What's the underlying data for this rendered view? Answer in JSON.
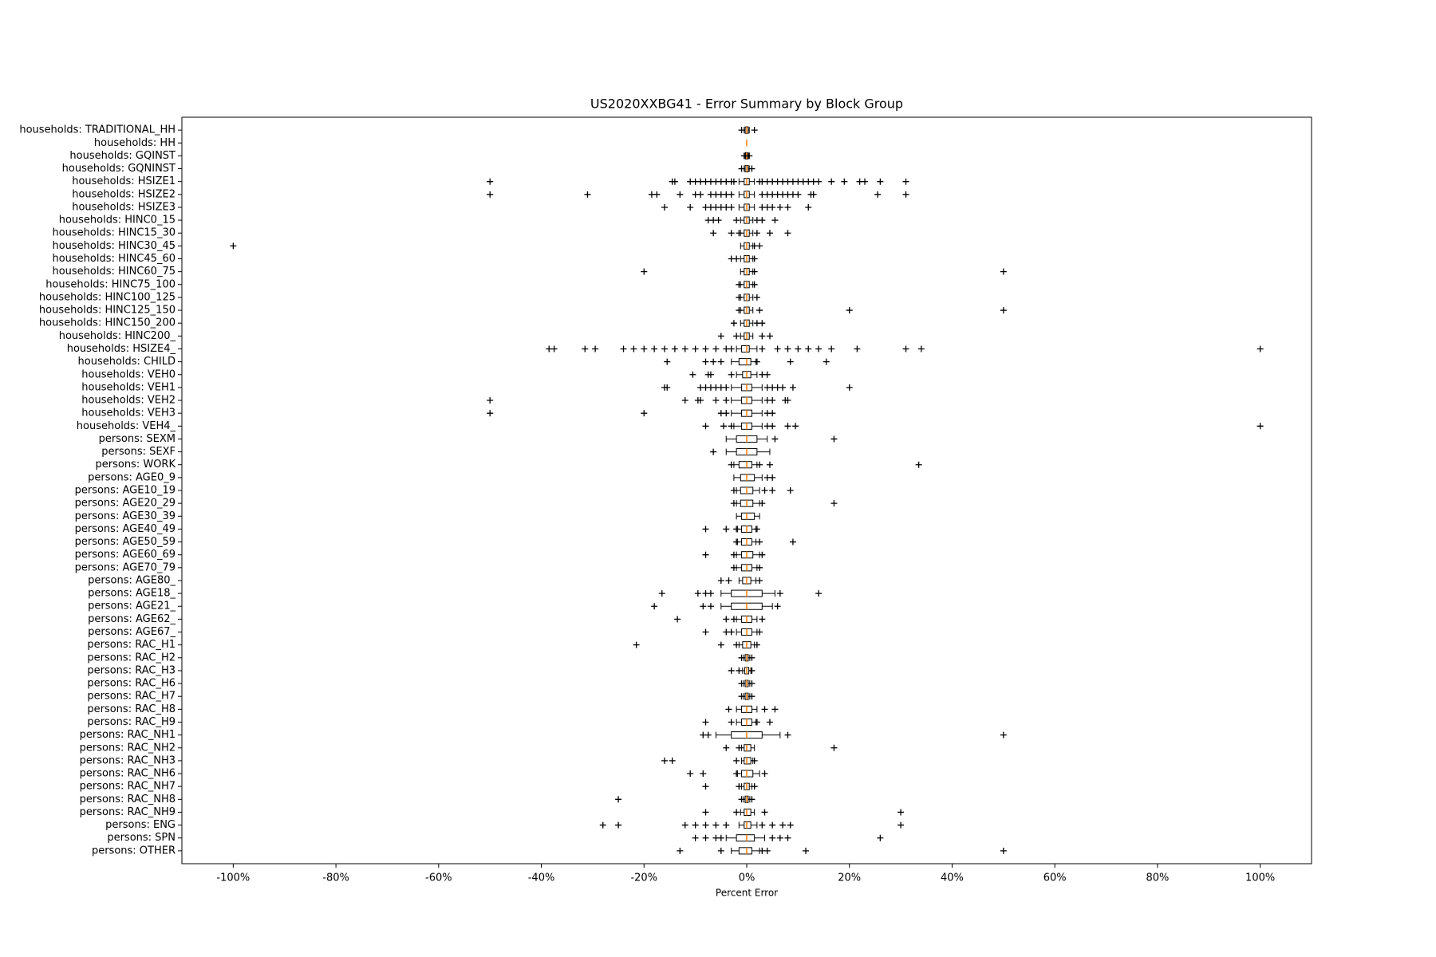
{
  "chart_data": {
    "type": "boxplot",
    "orientation": "horizontal",
    "title": "US2020XXBG41 - Error Summary by Block Group",
    "xlabel": "Percent Error",
    "xlim": [
      -110,
      110
    ],
    "xticks": [
      {
        "value": -100,
        "label": "-100%"
      },
      {
        "value": -80,
        "label": "-80%"
      },
      {
        "value": -60,
        "label": "-60%"
      },
      {
        "value": -40,
        "label": "-40%"
      },
      {
        "value": -20,
        "label": "-20%"
      },
      {
        "value": 0,
        "label": "0%"
      },
      {
        "value": 20,
        "label": "20%"
      },
      {
        "value": 40,
        "label": "40%"
      },
      {
        "value": 60,
        "label": "60%"
      },
      {
        "value": 80,
        "label": "80%"
      },
      {
        "value": 100,
        "label": "100%"
      }
    ],
    "box_color": "#000000",
    "median_color": "#ff7f0e",
    "categories": [
      "households: TRADITIONAL_HH",
      "households: HH",
      "households: GQINST",
      "households: GQNINST",
      "households: HSIZE1",
      "households: HSIZE2",
      "households: HSIZE3",
      "households: HINC0_15",
      "households: HINC15_30",
      "households: HINC30_45",
      "households: HINC45_60",
      "households: HINC60_75",
      "households: HINC75_100",
      "households: HINC100_125",
      "households: HINC125_150",
      "households: HINC150_200",
      "households: HINC200_",
      "households: HSIZE4_",
      "households: CHILD",
      "households: VEH0",
      "households: VEH1",
      "households: VEH2",
      "households: VEH3",
      "households: VEH4_",
      "persons: SEXM",
      "persons: SEXF",
      "persons: WORK",
      "persons: AGE0_9",
      "persons: AGE10_19",
      "persons: AGE20_29",
      "persons: AGE30_39",
      "persons: AGE40_49",
      "persons: AGE50_59",
      "persons: AGE60_69",
      "persons: AGE70_79",
      "persons: AGE80_",
      "persons: AGE18_",
      "persons: AGE21_",
      "persons: AGE62_",
      "persons: AGE67_",
      "persons: RAC_H1",
      "persons: RAC_H2",
      "persons: RAC_H3",
      "persons: RAC_H6",
      "persons: RAC_H7",
      "persons: RAC_H8",
      "persons: RAC_H9",
      "persons: RAC_NH1",
      "persons: RAC_NH2",
      "persons: RAC_NH3",
      "persons: RAC_NH6",
      "persons: RAC_NH7",
      "persons: RAC_NH8",
      "persons: RAC_NH9",
      "persons: ENG",
      "persons: SPN",
      "persons: OTHER"
    ],
    "boxes": [
      {
        "q1": -0.3,
        "median": 0,
        "q3": 0.3,
        "whislo": -0.5,
        "whishi": 0.5,
        "fliers": [
          -1,
          1.5
        ]
      },
      {
        "q1": 0,
        "median": 0,
        "q3": 0,
        "whislo": 0,
        "whishi": 0,
        "fliers": []
      },
      {
        "q1": -0.2,
        "median": 0,
        "q3": 0.2,
        "whislo": -0.3,
        "whishi": 0.3,
        "fliers": [
          -0.5,
          0.5
        ]
      },
      {
        "q1": -0.3,
        "median": 0,
        "q3": 0.3,
        "whislo": -0.5,
        "whishi": 0.5,
        "fliers": [
          -1,
          1
        ]
      },
      {
        "q1": -0.5,
        "median": 0,
        "q3": 0.5,
        "whislo": -1.5,
        "whishi": 1.5,
        "fliers": [
          -50,
          -14.5,
          -14,
          -11,
          -10,
          -9,
          -8,
          -7,
          -6,
          -5,
          -4,
          -3,
          -2.5,
          2.5,
          3,
          4,
          5,
          6,
          7,
          8,
          9,
          10,
          11,
          12,
          13,
          14,
          16.5,
          19,
          22,
          23,
          26,
          31
        ]
      },
      {
        "q1": -0.5,
        "median": 0,
        "q3": 0.5,
        "whislo": -1.5,
        "whishi": 1.5,
        "fliers": [
          -50,
          -31,
          -18.5,
          -17.5,
          -13,
          -10,
          -9,
          -7,
          -6,
          -5,
          -4,
          -3,
          3,
          4,
          5,
          6,
          7,
          8,
          9,
          10,
          12.5,
          13,
          25.5,
          31
        ]
      },
      {
        "q1": -0.5,
        "median": 0,
        "q3": 0.5,
        "whislo": -1.5,
        "whishi": 1.5,
        "fliers": [
          -16,
          -11,
          -8,
          -7,
          -6,
          -5,
          -4,
          -3,
          3,
          4,
          5,
          6.5,
          8,
          12
        ]
      },
      {
        "q1": -0.5,
        "median": 0,
        "q3": 0.5,
        "whislo": -1.2,
        "whishi": 1.2,
        "fliers": [
          -7.5,
          -6.5,
          -5.5,
          -2,
          2,
          3,
          5.5
        ]
      },
      {
        "q1": -0.5,
        "median": 0,
        "q3": 0.5,
        "whislo": -1.2,
        "whishi": 1.2,
        "fliers": [
          -6.5,
          -3,
          -1.5,
          2,
          4.5,
          8
        ]
      },
      {
        "q1": -0.5,
        "median": 0,
        "q3": 0.5,
        "whislo": -1.2,
        "whishi": 1.2,
        "fliers": [
          -100,
          1.5,
          2.5
        ]
      },
      {
        "q1": -0.5,
        "median": 0,
        "q3": 0.5,
        "whislo": -1.2,
        "whishi": 1.2,
        "fliers": [
          -3,
          -2,
          1.5
        ]
      },
      {
        "q1": -0.5,
        "median": 0,
        "q3": 0.5,
        "whislo": -1.2,
        "whishi": 1.2,
        "fliers": [
          -20,
          1.5,
          50
        ]
      },
      {
        "q1": -0.5,
        "median": 0,
        "q3": 0.5,
        "whislo": -1.2,
        "whishi": 1.2,
        "fliers": [
          -1.5,
          1.5
        ]
      },
      {
        "q1": -0.5,
        "median": 0,
        "q3": 0.5,
        "whislo": -1.2,
        "whishi": 1.2,
        "fliers": [
          -1.5,
          2
        ]
      },
      {
        "q1": -0.5,
        "median": 0,
        "q3": 0.5,
        "whislo": -1.2,
        "whishi": 1.2,
        "fliers": [
          -1.5,
          2.5,
          20,
          50
        ]
      },
      {
        "q1": -0.5,
        "median": 0,
        "q3": 0.5,
        "whislo": -1.2,
        "whishi": 1.2,
        "fliers": [
          -2.5,
          2,
          3
        ]
      },
      {
        "q1": -0.5,
        "median": 0,
        "q3": 0.5,
        "whislo": -1.2,
        "whishi": 1.2,
        "fliers": [
          -5,
          -2,
          3,
          4.5
        ]
      },
      {
        "q1": -1,
        "median": 0,
        "q3": 0.5,
        "whislo": -2,
        "whishi": 2,
        "fliers": [
          -38.5,
          -37.5,
          -31.5,
          -29.5,
          -24,
          -22,
          -20,
          -18,
          -16,
          -14,
          -12,
          -10,
          -8,
          -6,
          -4,
          -3,
          3,
          6,
          8,
          10,
          12,
          14,
          16.5,
          21.5,
          31,
          34,
          100
        ]
      },
      {
        "q1": -1.5,
        "median": 0,
        "q3": 0.8,
        "whislo": -3,
        "whishi": 1.8,
        "fliers": [
          -15.5,
          -8,
          -6.5,
          -5,
          2,
          8.5,
          15.5
        ]
      },
      {
        "q1": -0.8,
        "median": 0,
        "q3": 0.8,
        "whislo": -2,
        "whishi": 2,
        "fliers": [
          -10.5,
          -7.5,
          -7,
          -3,
          3,
          4
        ]
      },
      {
        "q1": -1,
        "median": 0,
        "q3": 1,
        "whislo": -3,
        "whishi": 3,
        "fliers": [
          -16,
          -15.5,
          -9,
          -8,
          -7,
          -6,
          -5,
          -4,
          4,
          5,
          6,
          7,
          9,
          20
        ]
      },
      {
        "q1": -1,
        "median": 0,
        "q3": 1,
        "whislo": -3,
        "whishi": 3,
        "fliers": [
          -50,
          -12,
          -9.5,
          -9,
          -6,
          -4,
          4,
          5,
          7.5,
          8
        ]
      },
      {
        "q1": -1,
        "median": 0,
        "q3": 1,
        "whislo": -3,
        "whishi": 3,
        "fliers": [
          -50,
          -20,
          -5,
          -4,
          4,
          5
        ]
      },
      {
        "q1": -1,
        "median": 0,
        "q3": 1,
        "whislo": -2.5,
        "whishi": 3,
        "fliers": [
          -8,
          -4.5,
          -3,
          4,
          5,
          8,
          9.5,
          100
        ]
      },
      {
        "q1": -2,
        "median": 0,
        "q3": 2,
        "whislo": -4,
        "whishi": 4,
        "fliers": [
          5.5,
          17
        ]
      },
      {
        "q1": -2,
        "median": 0,
        "q3": 2,
        "whislo": -4,
        "whishi": 4.5,
        "fliers": [
          -6.5
        ]
      },
      {
        "q1": -1.5,
        "median": 0,
        "q3": 1,
        "whislo": -2.5,
        "whishi": 2,
        "fliers": [
          -3,
          2.5,
          4.5,
          33.5
        ]
      },
      {
        "q1": -1.2,
        "median": 0,
        "q3": 1.5,
        "whislo": -2.5,
        "whishi": 3,
        "fliers": [
          4,
          5
        ]
      },
      {
        "q1": -1.2,
        "median": 0,
        "q3": 1.2,
        "whislo": -2,
        "whishi": 2.5,
        "fliers": [
          -2.5,
          3.5,
          5,
          8.5
        ]
      },
      {
        "q1": -1.2,
        "median": 0,
        "q3": 1.2,
        "whislo": -2,
        "whishi": 2.5,
        "fliers": [
          -2.5,
          3,
          17
        ]
      },
      {
        "q1": -1,
        "median": 0,
        "q3": 1.5,
        "whislo": -2,
        "whishi": 2.5,
        "fliers": []
      },
      {
        "q1": -1,
        "median": 0,
        "q3": 1,
        "whislo": -1.8,
        "whishi": 1.8,
        "fliers": [
          -8,
          -4,
          -2,
          2
        ]
      },
      {
        "q1": -1,
        "median": 0,
        "q3": 1,
        "whislo": -1.8,
        "whishi": 1.8,
        "fliers": [
          -2,
          2.5,
          9
        ]
      },
      {
        "q1": -1,
        "median": 0,
        "q3": 1.2,
        "whislo": -2,
        "whishi": 2.5,
        "fliers": [
          -8,
          -2.5,
          3
        ]
      },
      {
        "q1": -1,
        "median": 0,
        "q3": 1,
        "whislo": -2,
        "whishi": 2,
        "fliers": [
          -2.5,
          2.5
        ]
      },
      {
        "q1": -0.8,
        "median": 0,
        "q3": 0.8,
        "whislo": -1.5,
        "whishi": 1.8,
        "fliers": [
          -5,
          -3.5,
          2.5
        ]
      },
      {
        "q1": -3,
        "median": 0,
        "q3": 3,
        "whislo": -5,
        "whishi": 5.5,
        "fliers": [
          -16.5,
          -9.5,
          -8,
          -7,
          6.5,
          14
        ]
      },
      {
        "q1": -3,
        "median": 0,
        "q3": 3,
        "whislo": -5,
        "whishi": 5,
        "fliers": [
          -18,
          -8.5,
          -7,
          6
        ]
      },
      {
        "q1": -1,
        "median": 0,
        "q3": 1,
        "whislo": -2,
        "whishi": 2,
        "fliers": [
          -13.5,
          -4,
          -2.5,
          3
        ]
      },
      {
        "q1": -1,
        "median": 0,
        "q3": 1,
        "whislo": -2,
        "whishi": 2,
        "fliers": [
          -8,
          -4,
          -3,
          2.5
        ]
      },
      {
        "q1": -0.8,
        "median": 0,
        "q3": 0.8,
        "whislo": -1.5,
        "whishi": 1.5,
        "fliers": [
          -21.5,
          -5,
          -2,
          2
        ]
      },
      {
        "q1": -0.3,
        "median": 0,
        "q3": 0.3,
        "whislo": -0.6,
        "whishi": 0.6,
        "fliers": [
          -1,
          1
        ]
      },
      {
        "q1": -0.4,
        "median": 0,
        "q3": 0.4,
        "whislo": -0.8,
        "whishi": 0.8,
        "fliers": [
          -3,
          -1.5,
          1
        ]
      },
      {
        "q1": -0.3,
        "median": 0,
        "q3": 0.3,
        "whislo": -0.6,
        "whishi": 0.6,
        "fliers": [
          -1,
          1
        ]
      },
      {
        "q1": -0.3,
        "median": 0,
        "q3": 0.3,
        "whislo": -0.6,
        "whishi": 0.6,
        "fliers": [
          -1,
          1
        ]
      },
      {
        "q1": -1,
        "median": 0,
        "q3": 1,
        "whislo": -2,
        "whishi": 2,
        "fliers": [
          -3.5,
          3.5,
          5.5
        ]
      },
      {
        "q1": -1,
        "median": 0,
        "q3": 1,
        "whislo": -2,
        "whishi": 1.8,
        "fliers": [
          -8,
          -3,
          2,
          4.5
        ]
      },
      {
        "q1": -3,
        "median": 0,
        "q3": 3,
        "whislo": -6,
        "whishi": 6.5,
        "fliers": [
          -8.5,
          -7.5,
          8,
          50
        ]
      },
      {
        "q1": -0.5,
        "median": 0,
        "q3": 0.8,
        "whislo": -1,
        "whishi": 1.5,
        "fliers": [
          -4,
          -1.5,
          17
        ]
      },
      {
        "q1": -0.5,
        "median": 0,
        "q3": 0.8,
        "whislo": -1,
        "whishi": 1.2,
        "fliers": [
          -16,
          -14.5,
          -2,
          1.5
        ]
      },
      {
        "q1": -1,
        "median": 0,
        "q3": 1.2,
        "whislo": -1.8,
        "whishi": 2.5,
        "fliers": [
          -11,
          -8.5,
          -2,
          3.5
        ]
      },
      {
        "q1": -0.5,
        "median": 0,
        "q3": 0.5,
        "whislo": -1,
        "whishi": 1,
        "fliers": [
          -8,
          -1.5,
          1.5
        ]
      },
      {
        "q1": -0.3,
        "median": 0,
        "q3": 0.3,
        "whislo": -0.6,
        "whishi": 0.6,
        "fliers": [
          -25,
          -1,
          1
        ]
      },
      {
        "q1": -0.5,
        "median": 0,
        "q3": 0.8,
        "whislo": -1.2,
        "whishi": 1.5,
        "fliers": [
          -8,
          -2,
          3.5,
          30
        ]
      },
      {
        "q1": -0.5,
        "median": 0,
        "q3": 0.8,
        "whislo": -1.5,
        "whishi": 2,
        "fliers": [
          -28,
          -25,
          -12,
          -10,
          -8,
          -6,
          -4,
          3,
          5,
          7,
          8.5,
          30
        ]
      },
      {
        "q1": -2,
        "median": 0,
        "q3": 1.5,
        "whislo": -4,
        "whishi": 3.5,
        "fliers": [
          -10,
          -8,
          -6,
          -5,
          5,
          6.5,
          8,
          26
        ]
      },
      {
        "q1": -1.5,
        "median": 0,
        "q3": 1,
        "whislo": -3,
        "whishi": 2.5,
        "fliers": [
          -13,
          -5,
          3,
          4,
          11.5,
          50
        ]
      }
    ]
  }
}
